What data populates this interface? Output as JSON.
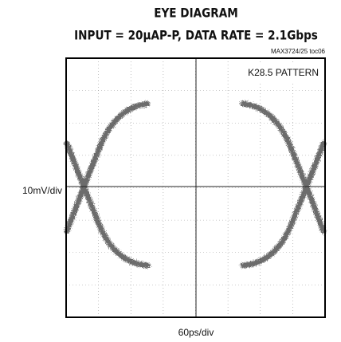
{
  "chart_data": {
    "type": "eye",
    "title": "EYE DIAGRAM",
    "subtitle": "INPUT = 20μAP-P, DATA RATE = 2.1Gbps",
    "annotations": [
      "MAX3724/25 toc06",
      "K28.5 PATTERN"
    ],
    "y_label": "10mV/div",
    "x_label": "60ps/div",
    "grid": true
  }
}
